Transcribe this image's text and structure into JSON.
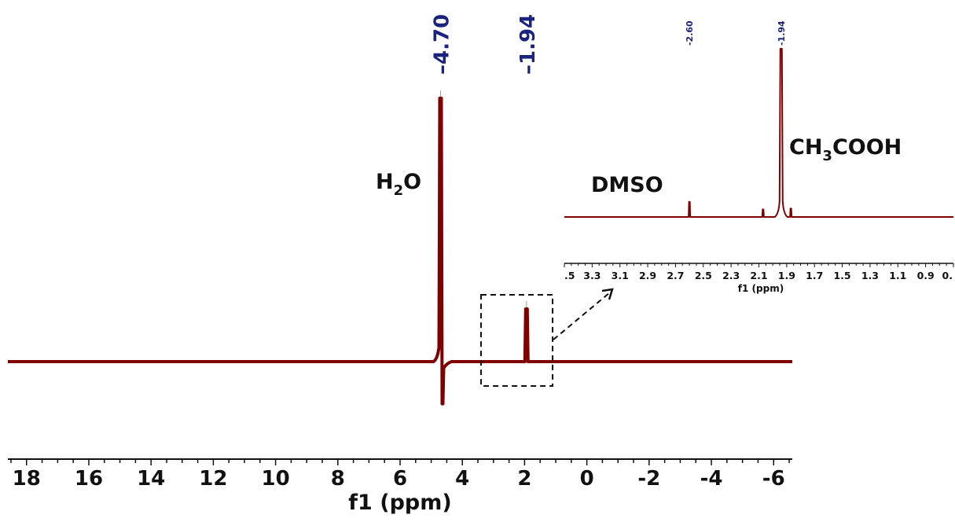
{
  "chart_data": [
    {
      "type": "line",
      "xlabel": "f1 (ppm)",
      "xlim": [
        18.6,
        -6.6
      ],
      "reversed_x": true,
      "ticks": [
        "18",
        "16",
        "14",
        "12",
        "10",
        "8",
        "6",
        "4",
        "2",
        "0",
        "-2",
        "-4",
        "-6"
      ],
      "tick_values": [
        18,
        16,
        14,
        12,
        10,
        8,
        6,
        4,
        2,
        0,
        -2,
        -4,
        -6
      ],
      "minor_tick_step": 0.5,
      "peaks": [
        {
          "ppm": 4.7,
          "label": "4.70",
          "intensity": 1.0,
          "negative_lobe": 0.16
        },
        {
          "ppm": 1.94,
          "label": "1.94",
          "intensity": 0.2
        }
      ],
      "annotations": [
        {
          "text": "H",
          "sub": "2",
          "tail": "O"
        }
      ],
      "zoom_box": {
        "from_ppm": 3.4,
        "to_ppm": 1.1
      },
      "line_color": "#800000",
      "peak_label_color": "#1a237e"
    },
    {
      "type": "line",
      "xlabel": "f1 (ppm)",
      "xlim": [
        3.5,
        0.7
      ],
      "reversed_x": true,
      "ticks": [
        ".5",
        "3.3",
        "3.1",
        "2.9",
        "2.7",
        "2.5",
        "2.3",
        "2.1",
        "1.9",
        "1.7",
        "1.5",
        "1.3",
        "1.1",
        "0.9",
        "0."
      ],
      "tick_values": [
        3.5,
        3.3,
        3.1,
        2.9,
        2.7,
        2.5,
        2.3,
        2.1,
        1.9,
        1.7,
        1.5,
        1.3,
        1.1,
        0.9,
        0.7
      ],
      "peaks": [
        {
          "ppm": 2.6,
          "label": "2.60",
          "intensity": 0.09
        },
        {
          "ppm": 1.94,
          "label": "1.94",
          "intensity": 1.0
        },
        {
          "ppm": 2.07,
          "label": "",
          "intensity": 0.045
        },
        {
          "ppm": 1.87,
          "label": "",
          "intensity": 0.05
        }
      ],
      "annotations": [
        {
          "text": "DMSO",
          "sub": "",
          "tail": ""
        },
        {
          "text": "CH",
          "sub": "3",
          "tail": "COOH"
        }
      ],
      "line_color": "#800000",
      "peak_label_color": "#1a237e"
    }
  ]
}
